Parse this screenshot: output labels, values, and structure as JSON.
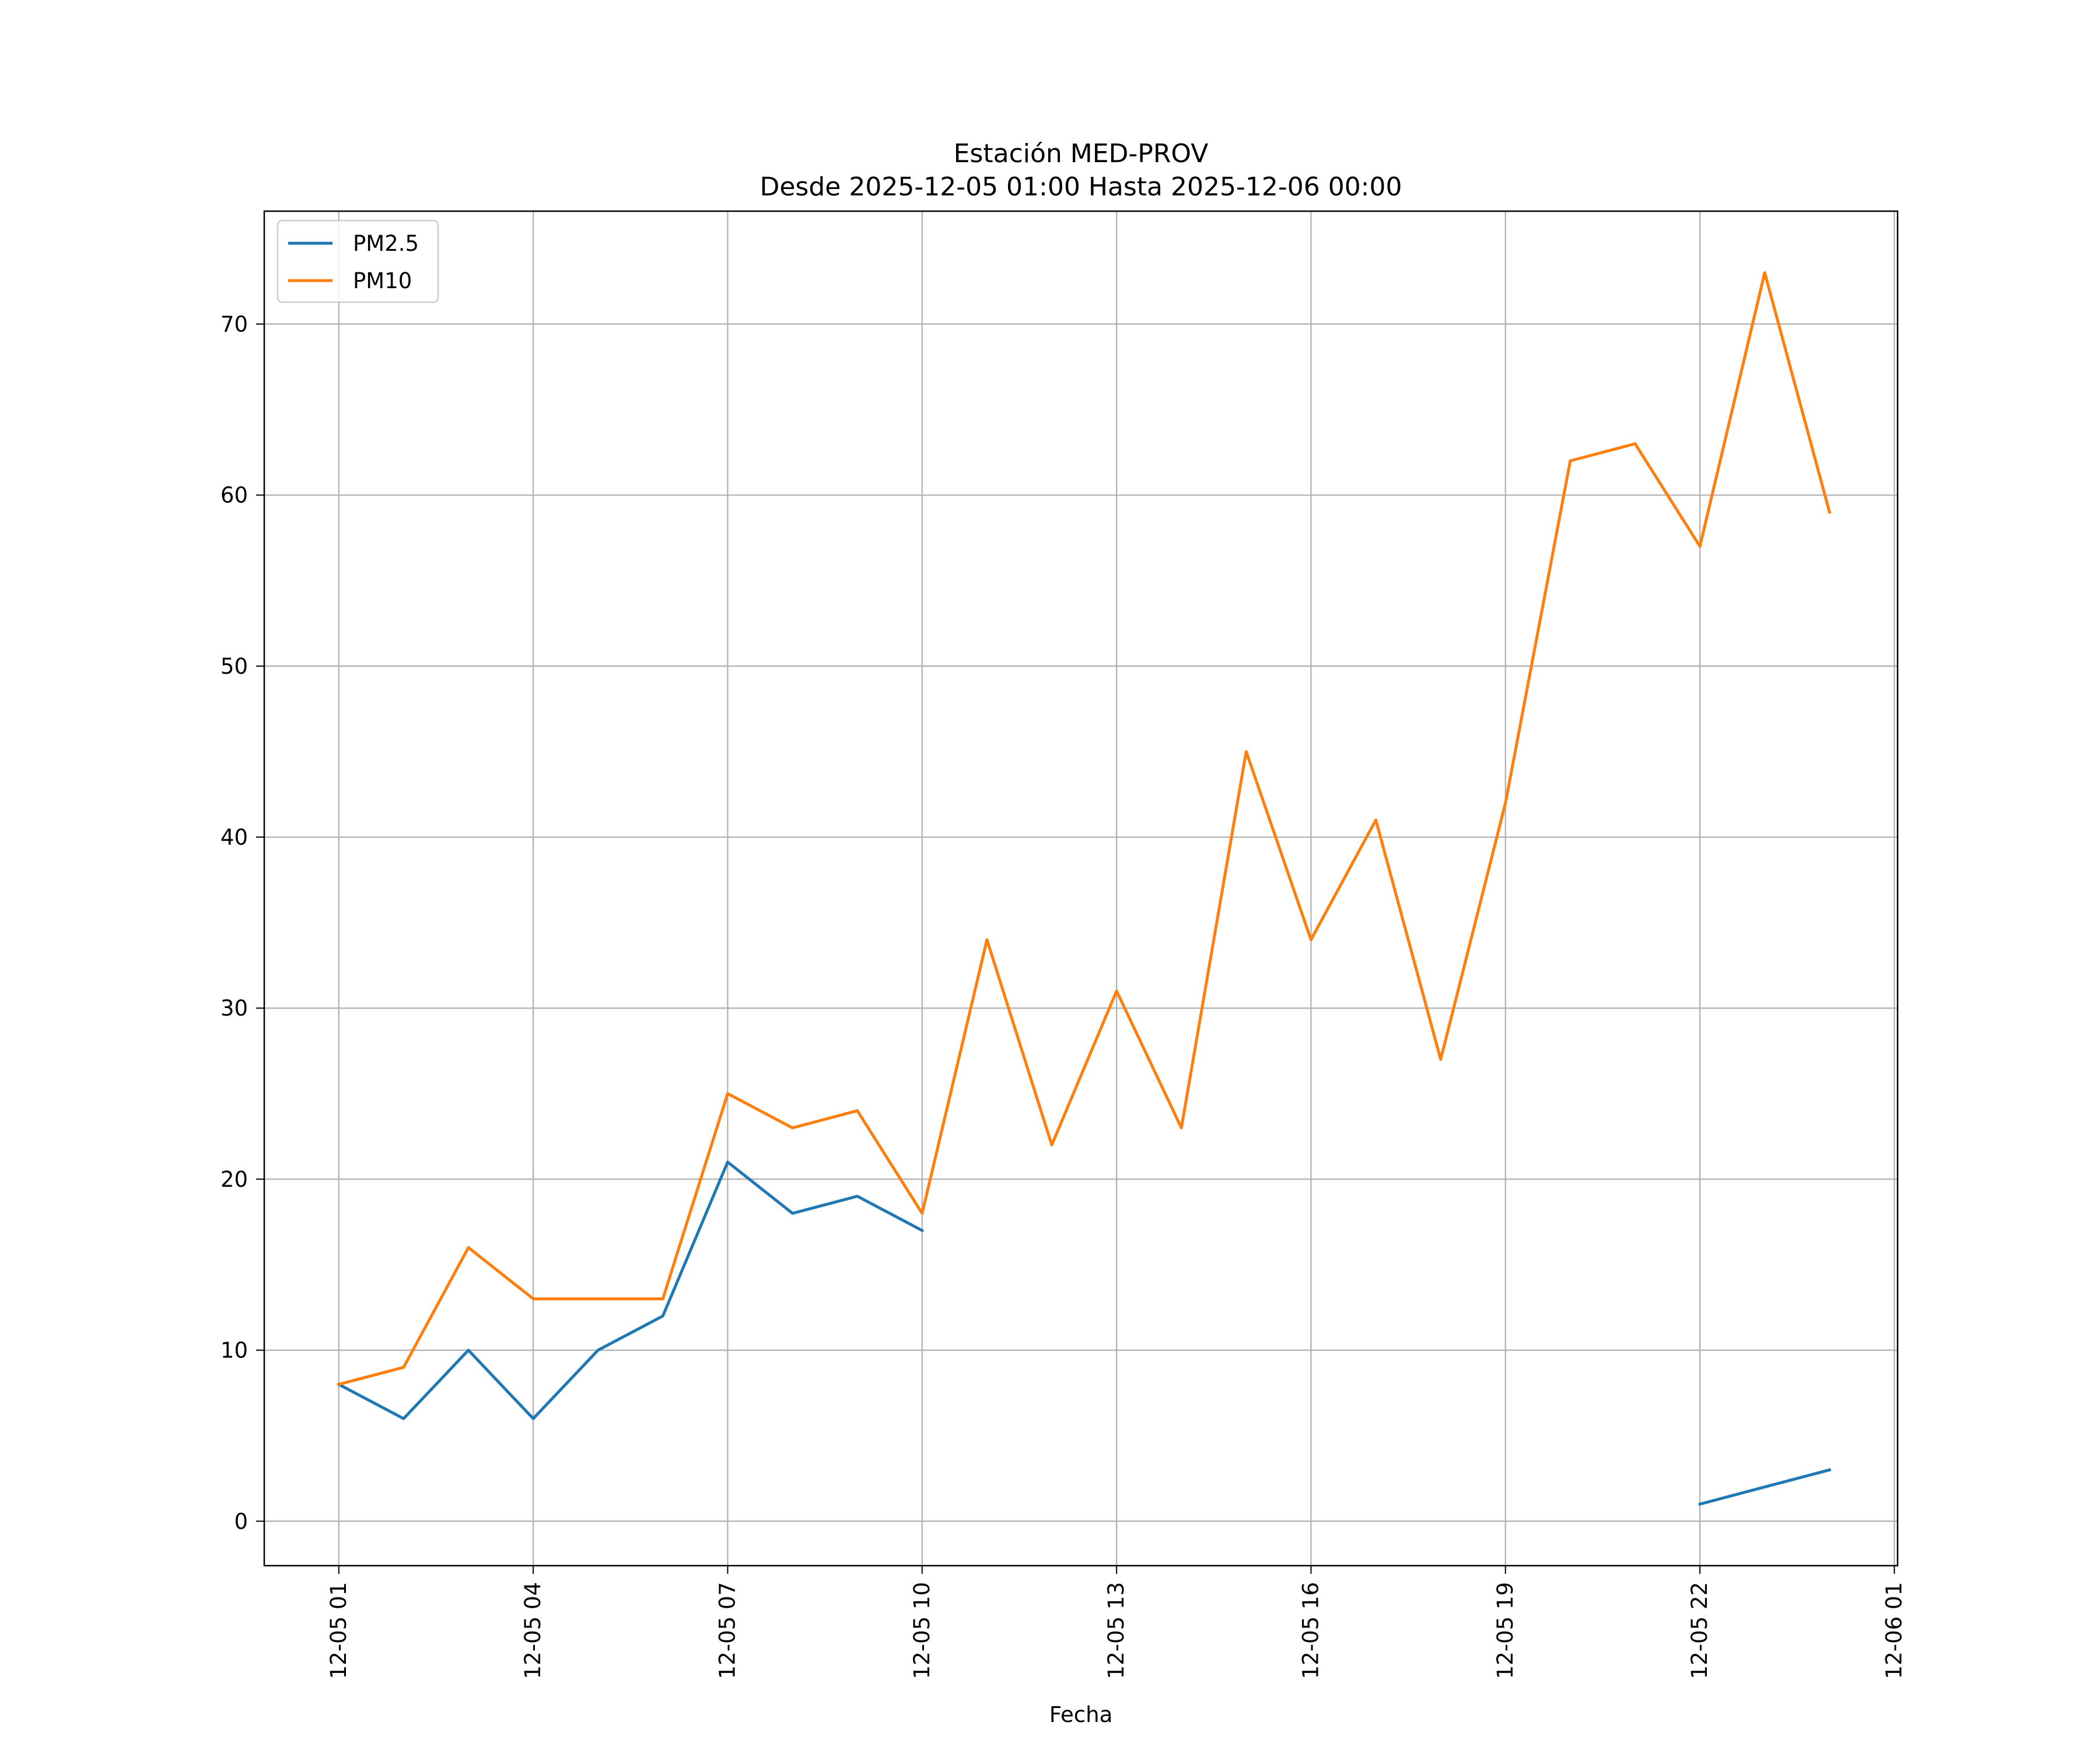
{
  "chart_data": {
    "type": "line",
    "title": [
      "Estación MED-PROV",
      "Desde 2025-12-05 01:00 Hasta 2025-12-06 00:00"
    ],
    "xlabel": "Fecha",
    "ylabel": "",
    "x": [
      "2025-12-05 01:00",
      "2025-12-05 02:00",
      "2025-12-05 03:00",
      "2025-12-05 04:00",
      "2025-12-05 05:00",
      "2025-12-05 06:00",
      "2025-12-05 07:00",
      "2025-12-05 08:00",
      "2025-12-05 09:00",
      "2025-12-05 10:00",
      "2025-12-05 11:00",
      "2025-12-05 12:00",
      "2025-12-05 13:00",
      "2025-12-05 14:00",
      "2025-12-05 15:00",
      "2025-12-05 16:00",
      "2025-12-05 17:00",
      "2025-12-05 18:00",
      "2025-12-05 19:00",
      "2025-12-05 20:00",
      "2025-12-05 21:00",
      "2025-12-05 22:00",
      "2025-12-05 23:00",
      "2025-12-06 00:00"
    ],
    "series": [
      {
        "name": "PM2.5",
        "color": "#1f77b4",
        "values": [
          8,
          6,
          10,
          6,
          10,
          12,
          21,
          18,
          19,
          17,
          null,
          null,
          null,
          null,
          null,
          null,
          null,
          null,
          null,
          null,
          null,
          1,
          2,
          3
        ]
      },
      {
        "name": "PM10",
        "color": "#ff7f0e",
        "values": [
          8,
          9,
          16,
          13,
          13,
          13,
          25,
          23,
          24,
          18,
          34,
          22,
          31,
          23,
          45,
          34,
          41,
          27,
          42,
          62,
          63,
          57,
          73,
          59
        ]
      }
    ],
    "xticks": [
      "12-05 01",
      "12-05 04",
      "12-05 07",
      "12-05 10",
      "12-05 13",
      "12-05 16",
      "12-05 19",
      "12-05 22",
      "12-06 01"
    ],
    "xtick_values": [
      "2025-12-05 01:00",
      "2025-12-05 04:00",
      "2025-12-05 07:00",
      "2025-12-05 10:00",
      "2025-12-05 13:00",
      "2025-12-05 16:00",
      "2025-12-05 19:00",
      "2025-12-05 22:00",
      "2025-12-06 01:00"
    ],
    "xlim": [
      "2025-12-04 23:51",
      "2025-12-06 01:03"
    ],
    "yticks": [
      0,
      10,
      20,
      30,
      40,
      50,
      60,
      70
    ],
    "ylim": [
      -2.6,
      76.6
    ],
    "grid": true,
    "legend": "upper left"
  }
}
